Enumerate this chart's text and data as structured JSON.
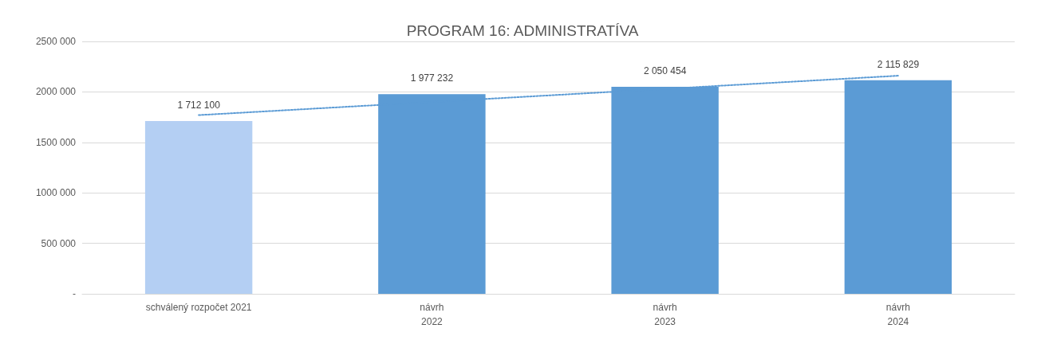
{
  "chart_data": {
    "type": "bar",
    "title": "PROGRAM 16: ADMINISTRATÍVA",
    "categories": [
      "schválený rozpočet 2021",
      "návrh\n2022",
      "návrh\n2023",
      "návrh\n2024"
    ],
    "series": [
      {
        "values": [
          1712100,
          1977232,
          2050454,
          2115829
        ],
        "colors": [
          "#b4cff3",
          "#5b9bd5",
          "#5b9bd5",
          "#5b9bd5"
        ],
        "value_labels": [
          "1 712 100",
          "1 977 232",
          "2 050 454",
          "2 115 829"
        ]
      },
      {
        "type": "line",
        "x": [
          "schválený rozpočet 2021",
          "návrh\n2024"
        ],
        "values": [
          1770000,
          2160000
        ],
        "color": "#5b9bd5",
        "line_style": "dotted",
        "marker": "none"
      }
    ],
    "ylim": [
      0,
      2500000
    ],
    "yticks": [
      {
        "value": 0,
        "label": "-"
      },
      {
        "value": 500000,
        "label": "500 000"
      },
      {
        "value": 1000000,
        "label": "1000 000"
      },
      {
        "value": 1500000,
        "label": "1500 000"
      },
      {
        "value": 2000000,
        "label": "2000 000"
      },
      {
        "value": 2500000,
        "label": "2500 000"
      }
    ],
    "grid": "y"
  }
}
